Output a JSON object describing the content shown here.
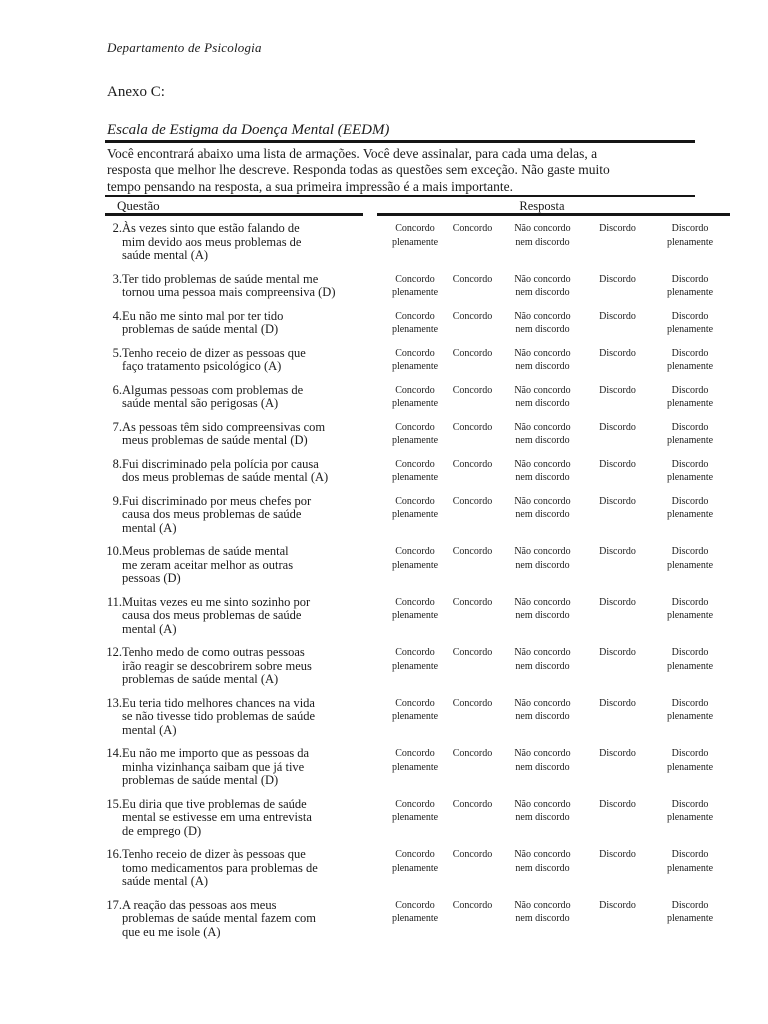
{
  "page": {
    "department": "Departamento de Psicologia",
    "annex_label": "Anexo C:",
    "scale_title": "Escala de Estigma da Doença Mental (EEDM)",
    "instructions": "Você encontrará abaixo uma lista de armações. Você deve assinalar, para cada uma delas, a\nresposta que melhor lhe descreve. Responda todas as questões sem exceção. Não gaste muito\ntempo pensando na resposta, a sua primeira impressão é a mais importante."
  },
  "table": {
    "question_header": "Questão",
    "response_header": "Resposta",
    "response_options": [
      "Concordo\nplenamente",
      "Concordo",
      "Não concordo\nnem discordo",
      "Discordo",
      "Discordo\nplenamente"
    ],
    "questions": [
      {
        "num": "2.",
        "text": "Às vezes sinto que estão falando de\nmim devido aos meus problemas de\nsaúde mental (A)"
      },
      {
        "num": "3.",
        "text": "Ter tido problemas de saúde mental me\ntornou uma pessoa mais compreensiva (D)"
      },
      {
        "num": "4.",
        "text": "Eu não me sinto mal por ter tido\nproblemas de saúde mental (D)"
      },
      {
        "num": "5.",
        "text": "Tenho receio de dizer as pessoas que\nfaço tratamento psicológico (A)"
      },
      {
        "num": "6.",
        "text": "Algumas pessoas com problemas de\nsaúde mental são perigosas (A)"
      },
      {
        "num": "7.",
        "text": "As pessoas têm sido compreensivas com\nmeus problemas de saúde mental (D)"
      },
      {
        "num": "8.",
        "text": "Fui discriminado pela polícia por causa\ndos meus problemas de saúde mental (A)"
      },
      {
        "num": "9.",
        "text": "Fui discriminado por meus chefes por\ncausa dos meus problemas de saúde\nmental (A)"
      },
      {
        "num": "10.",
        "text": "Meus problemas de saúde mental\nme zeram aceitar melhor as outras\npessoas (D)"
      },
      {
        "num": "11.",
        "text": "Muitas vezes eu me sinto sozinho por\ncausa dos meus problemas de saúde\nmental (A)"
      },
      {
        "num": "12.",
        "text": "Tenho medo de como outras pessoas\nirão reagir se descobrirem sobre meus\nproblemas de saúde mental (A)"
      },
      {
        "num": "13.",
        "text": "Eu teria tido melhores chances na vida\nse não tivesse tido problemas de saúde\nmental (A)"
      },
      {
        "num": "14.",
        "text": "Eu não me importo que as pessoas da\nminha vizinhança saibam que já tive\nproblemas de saúde mental (D)"
      },
      {
        "num": "15.",
        "text": "Eu diria que tive problemas de saúde\nmental se estivesse em uma entrevista\nde emprego (D)"
      },
      {
        "num": "16.",
        "text": "Tenho receio de dizer às pessoas que\ntomo medicamentos para problemas de\nsaúde mental (A)"
      },
      {
        "num": "17.",
        "text": "A reação das pessoas aos meus\nproblemas de saúde mental fazem com\nque eu me isole (A)"
      }
    ]
  },
  "colors": {
    "text": "#1b1b1b",
    "rule": "#151515",
    "background": "#ffffff"
  }
}
